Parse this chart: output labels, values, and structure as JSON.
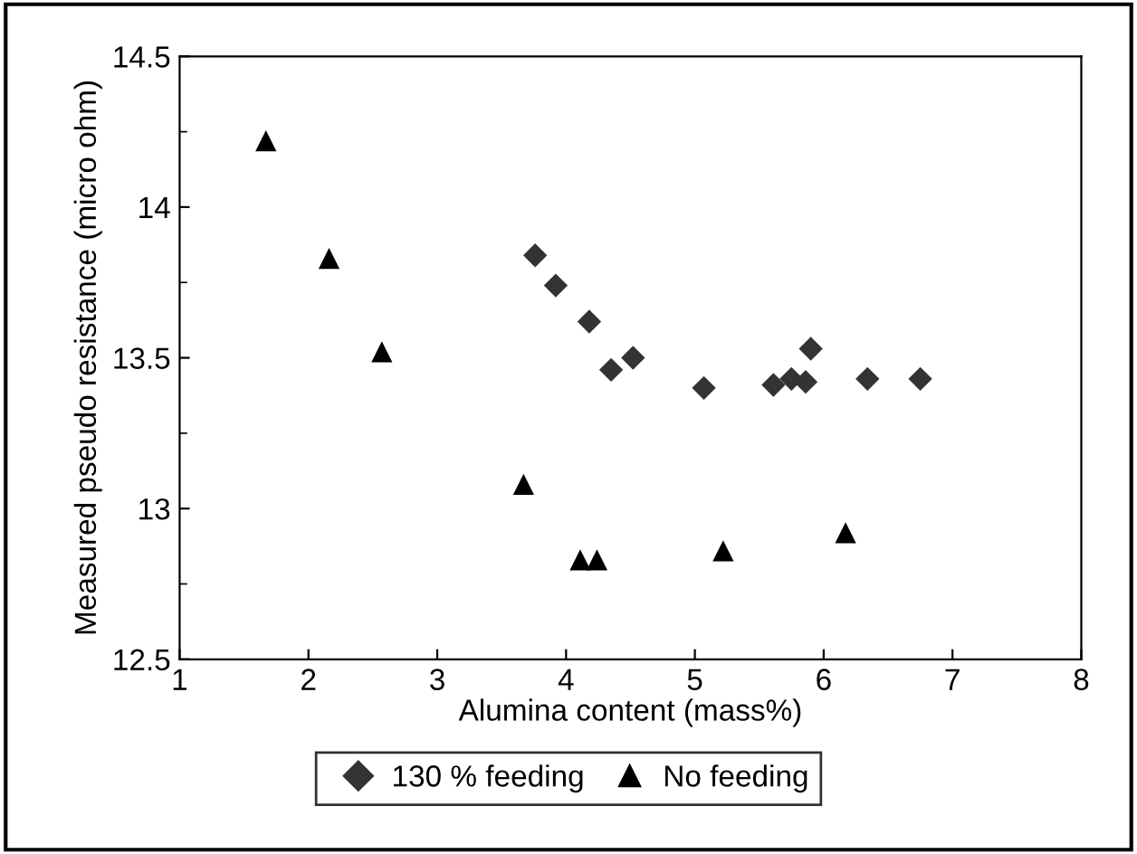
{
  "chart_data": {
    "type": "scatter",
    "xlabel": "Alumina content (mass%)",
    "ylabel": "Measured pseudo resistance (micro ohm)",
    "xlim": [
      1,
      8
    ],
    "xticks": [
      1,
      2,
      3,
      4,
      5,
      6,
      7,
      8
    ],
    "ylim": [
      12.5,
      14.5
    ],
    "yticks": [
      12.5,
      13,
      13.5,
      14,
      14.5
    ],
    "grid": false,
    "legend": "bottom",
    "series": [
      {
        "name": "130 % feeding",
        "color": "#333333",
        "marker": "diamond",
        "x": [
          3.76,
          3.92,
          4.18,
          4.35,
          4.48,
          4.52,
          5.07,
          5.61,
          5.64,
          5.75,
          5.86,
          5.9,
          6.34,
          6.75
        ],
        "values": [
          13.84,
          13.74,
          13.62,
          13.46,
          null,
          13.5,
          13.4,
          13.41,
          null,
          13.43,
          13.42,
          13.53,
          13.43,
          13.43
        ]
      },
      {
        "name": "No feeding",
        "color": "#000000",
        "marker": "triangle",
        "x": [
          1.67,
          2.16,
          2.57,
          3.67,
          4.11,
          4.24,
          5.22,
          6.17
        ],
        "values": [
          14.22,
          13.83,
          13.52,
          13.08,
          12.83,
          12.83,
          12.86,
          12.92
        ]
      }
    ]
  }
}
